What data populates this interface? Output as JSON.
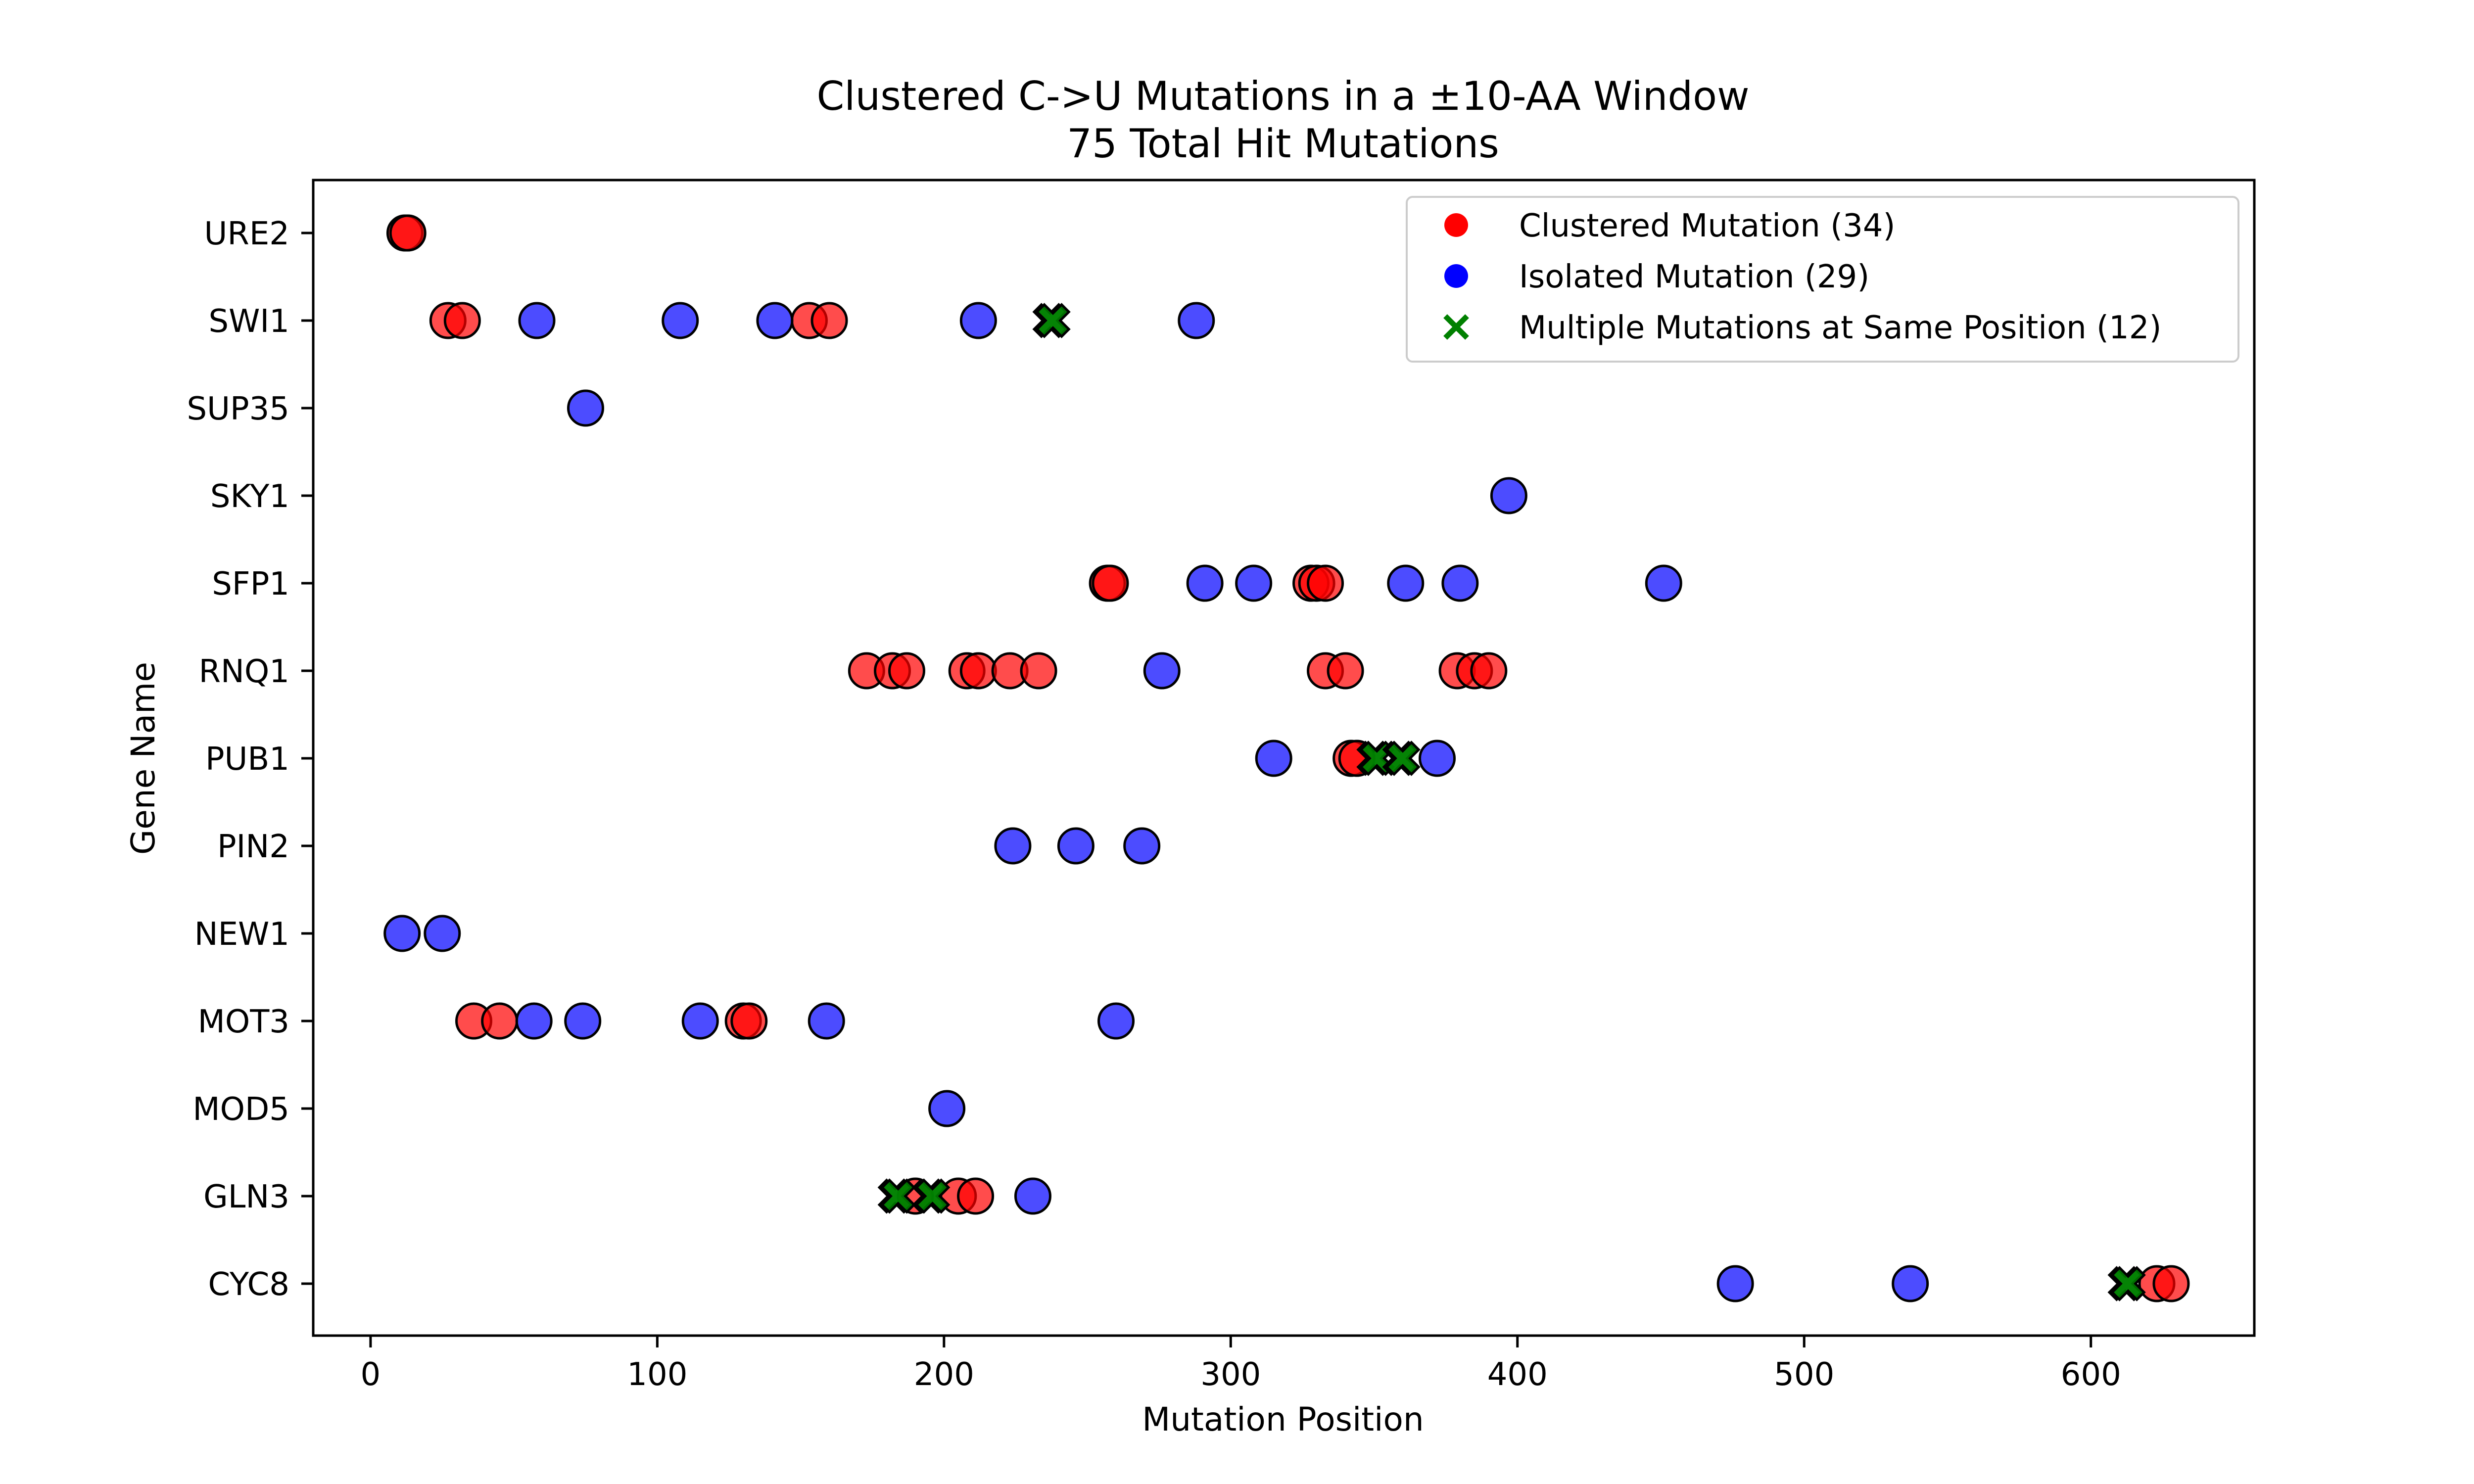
{
  "chart_data": {
    "type": "scatter",
    "title": "Clustered C->U Mutations in a ±10-AA Window",
    "subtitle": "75 Total Hit Mutations",
    "xlabel": "Mutation Position",
    "ylabel": "Gene Name",
    "xlim": [
      -20,
      657
    ],
    "xticks": [
      0,
      100,
      200,
      300,
      400,
      500,
      600
    ],
    "categories": [
      "URE2",
      "SWI1",
      "SUP35",
      "SKY1",
      "SFP1",
      "RNQ1",
      "PUB1",
      "PIN2",
      "NEW1",
      "MOT3",
      "MOD5",
      "GLN3",
      "CYC8"
    ],
    "legend_position": "top-right",
    "grid": false,
    "series": [
      {
        "name": "Clustered Mutation (34)",
        "marker": "circle",
        "color": "#ff0000",
        "points": [
          {
            "gene": "URE2",
            "x": 12
          },
          {
            "gene": "URE2",
            "x": 13
          },
          {
            "gene": "SWI1",
            "x": 27
          },
          {
            "gene": "SWI1",
            "x": 32
          },
          {
            "gene": "SWI1",
            "x": 153
          },
          {
            "gene": "SWI1",
            "x": 160
          },
          {
            "gene": "SFP1",
            "x": 257
          },
          {
            "gene": "SFP1",
            "x": 258
          },
          {
            "gene": "SFP1",
            "x": 328
          },
          {
            "gene": "SFP1",
            "x": 330
          },
          {
            "gene": "SFP1",
            "x": 333
          },
          {
            "gene": "RNQ1",
            "x": 173
          },
          {
            "gene": "RNQ1",
            "x": 182
          },
          {
            "gene": "RNQ1",
            "x": 187
          },
          {
            "gene": "RNQ1",
            "x": 208
          },
          {
            "gene": "RNQ1",
            "x": 212
          },
          {
            "gene": "RNQ1",
            "x": 223
          },
          {
            "gene": "RNQ1",
            "x": 233
          },
          {
            "gene": "RNQ1",
            "x": 333
          },
          {
            "gene": "RNQ1",
            "x": 340
          },
          {
            "gene": "RNQ1",
            "x": 379
          },
          {
            "gene": "RNQ1",
            "x": 385
          },
          {
            "gene": "RNQ1",
            "x": 390
          },
          {
            "gene": "PUB1",
            "x": 342
          },
          {
            "gene": "PUB1",
            "x": 344
          },
          {
            "gene": "MOT3",
            "x": 36
          },
          {
            "gene": "MOT3",
            "x": 45
          },
          {
            "gene": "MOT3",
            "x": 130
          },
          {
            "gene": "MOT3",
            "x": 132
          },
          {
            "gene": "GLN3",
            "x": 190
          },
          {
            "gene": "GLN3",
            "x": 205
          },
          {
            "gene": "GLN3",
            "x": 211
          },
          {
            "gene": "CYC8",
            "x": 623
          },
          {
            "gene": "CYC8",
            "x": 628
          }
        ]
      },
      {
        "name": "Isolated Mutation (29)",
        "marker": "circle",
        "color": "#0000ff",
        "points": [
          {
            "gene": "SWI1",
            "x": 58
          },
          {
            "gene": "SWI1",
            "x": 108
          },
          {
            "gene": "SWI1",
            "x": 141
          },
          {
            "gene": "SWI1",
            "x": 212
          },
          {
            "gene": "SWI1",
            "x": 288
          },
          {
            "gene": "SUP35",
            "x": 75
          },
          {
            "gene": "SKY1",
            "x": 397
          },
          {
            "gene": "SFP1",
            "x": 291
          },
          {
            "gene": "SFP1",
            "x": 308
          },
          {
            "gene": "SFP1",
            "x": 361
          },
          {
            "gene": "SFP1",
            "x": 380
          },
          {
            "gene": "SFP1",
            "x": 451
          },
          {
            "gene": "RNQ1",
            "x": 276
          },
          {
            "gene": "PUB1",
            "x": 315
          },
          {
            "gene": "PUB1",
            "x": 372
          },
          {
            "gene": "PIN2",
            "x": 224
          },
          {
            "gene": "PIN2",
            "x": 246
          },
          {
            "gene": "PIN2",
            "x": 269
          },
          {
            "gene": "NEW1",
            "x": 11
          },
          {
            "gene": "NEW1",
            "x": 25
          },
          {
            "gene": "MOT3",
            "x": 57
          },
          {
            "gene": "MOT3",
            "x": 74
          },
          {
            "gene": "MOT3",
            "x": 115
          },
          {
            "gene": "MOT3",
            "x": 159
          },
          {
            "gene": "MOT3",
            "x": 260
          },
          {
            "gene": "MOD5",
            "x": 201
          },
          {
            "gene": "GLN3",
            "x": 231
          },
          {
            "gene": "CYC8",
            "x": 476
          },
          {
            "gene": "CYC8",
            "x": 537
          }
        ]
      },
      {
        "name": "Multiple Mutations at Same Position (12)",
        "marker": "x",
        "color": "#008000",
        "points": [
          {
            "gene": "SWI1",
            "x": 237
          },
          {
            "gene": "SWI1",
            "x": 238
          },
          {
            "gene": "PUB1",
            "x": 350
          },
          {
            "gene": "PUB1",
            "x": 351
          },
          {
            "gene": "PUB1",
            "x": 359
          },
          {
            "gene": "PUB1",
            "x": 360
          },
          {
            "gene": "GLN3",
            "x": 183
          },
          {
            "gene": "GLN3",
            "x": 184
          },
          {
            "gene": "GLN3",
            "x": 195
          },
          {
            "gene": "GLN3",
            "x": 196
          },
          {
            "gene": "CYC8",
            "x": 612
          },
          {
            "gene": "CYC8",
            "x": 613
          }
        ]
      }
    ]
  }
}
